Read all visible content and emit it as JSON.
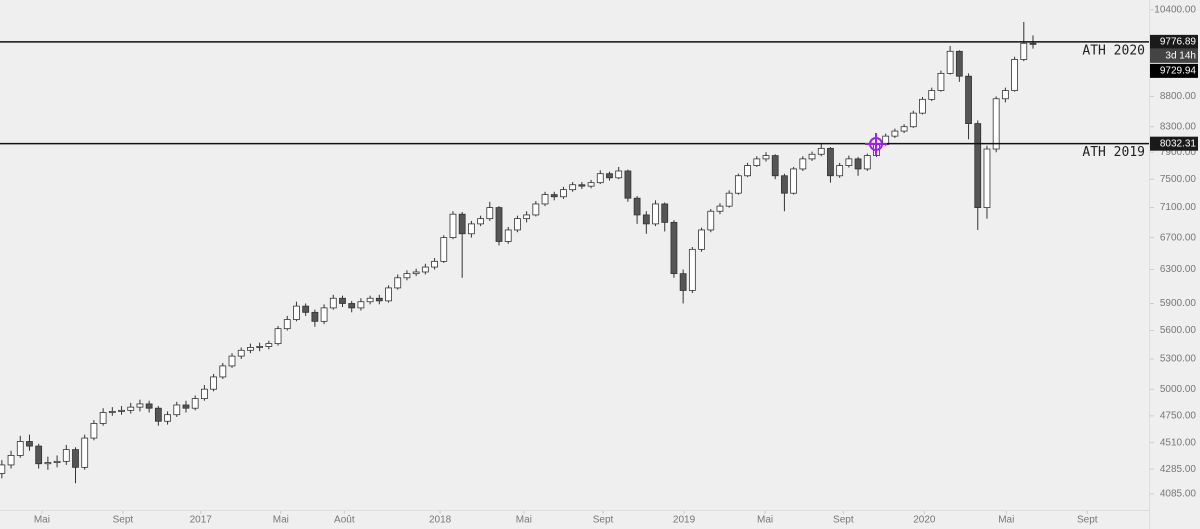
{
  "chart_data": {
    "type": "candlestick",
    "log_scale": true,
    "up_color": "#ffffff",
    "down_color": "#555555",
    "outline_color": "#333333",
    "ylim": [
      3960,
      10600
    ],
    "yticks": [
      {
        "value": 4085,
        "label": "4085.00"
      },
      {
        "value": 4285,
        "label": "4285.00"
      },
      {
        "value": 4510,
        "label": "4510.00"
      },
      {
        "value": 4750,
        "label": "4750.00"
      },
      {
        "value": 5000,
        "label": "5000.00"
      },
      {
        "value": 5300,
        "label": "5300.00"
      },
      {
        "value": 5600,
        "label": "5600.00"
      },
      {
        "value": 5900,
        "label": "5900.00"
      },
      {
        "value": 6300,
        "label": "6300.00"
      },
      {
        "value": 6700,
        "label": "6700.00"
      },
      {
        "value": 7100,
        "label": "7100.00"
      },
      {
        "value": 7500,
        "label": "7500.00"
      },
      {
        "value": 7900,
        "label": "7900.00"
      },
      {
        "value": 8300,
        "label": "8300.00"
      },
      {
        "value": 8800,
        "label": "8800.00"
      },
      {
        "value": 10400,
        "label": "10400.00"
      }
    ],
    "xlim": [
      -0.2,
      124.6
    ],
    "xticks": [
      {
        "value": 4.35,
        "label": "Mai"
      },
      {
        "value": 13.15,
        "label": "Sept"
      },
      {
        "value": 21.6,
        "label": "2017"
      },
      {
        "value": 30.3,
        "label": "Mai"
      },
      {
        "value": 37.2,
        "label": "Août"
      },
      {
        "value": 47.6,
        "label": "2018"
      },
      {
        "value": 56.7,
        "label": "Mai"
      },
      {
        "value": 65.3,
        "label": "Sept"
      },
      {
        "value": 74.1,
        "label": "2019"
      },
      {
        "value": 82.9,
        "label": "Mai"
      },
      {
        "value": 91.4,
        "label": "Sept"
      },
      {
        "value": 100.2,
        "label": "2020"
      },
      {
        "value": 109.1,
        "label": "Mai"
      },
      {
        "value": 117.9,
        "label": "Sept"
      }
    ],
    "open": [
      4250,
      4320,
      4400,
      4520,
      4480,
      4330,
      4340,
      4350,
      4450,
      4300,
      4550,
      4680,
      4780,
      4790,
      4800,
      4830,
      4860,
      4820,
      4700,
      4760,
      4850,
      4820,
      4910,
      5000,
      5120,
      5230,
      5330,
      5390,
      5420,
      5430,
      5460,
      5620,
      5720,
      5870,
      5800,
      5700,
      5850,
      5960,
      5900,
      5850,
      5920,
      5960,
      5930,
      6080,
      6200,
      6250,
      6270,
      6330,
      6400,
      6700,
      7010,
      6750,
      6880,
      6950,
      7100,
      6650,
      6800,
      6950,
      7000,
      7150,
      7280,
      7250,
      7350,
      7420,
      7400,
      7450,
      7580,
      7520,
      7620,
      7230,
      7000,
      6880,
      7150,
      6900,
      6250,
      6050,
      6550,
      6800,
      7050,
      7120,
      7300,
      7550,
      7700,
      7800,
      7850,
      7550,
      7300,
      7650,
      7800,
      7870,
      7960,
      7550,
      7700,
      7800,
      7650,
      7850,
      8020,
      8150,
      8230,
      8300,
      8520,
      8750,
      8900,
      9200,
      9600,
      9150,
      8350,
      7100,
      7950,
      8760,
      8900,
      9450,
      9750
    ],
    "high": [
      4360,
      4440,
      4570,
      4580,
      4500,
      4390,
      4400,
      4490,
      4470,
      4580,
      4710,
      4820,
      4830,
      4840,
      4870,
      4900,
      4890,
      4840,
      4790,
      4880,
      4890,
      4940,
      5040,
      5150,
      5260,
      5360,
      5420,
      5460,
      5470,
      5490,
      5650,
      5760,
      5920,
      5900,
      5830,
      5890,
      6000,
      5990,
      5930,
      5960,
      5990,
      6000,
      6110,
      6240,
      6290,
      6310,
      6370,
      6440,
      6730,
      7050,
      7040,
      6920,
      6990,
      7180,
      7120,
      6840,
      6990,
      7050,
      7190,
      7320,
      7320,
      7390,
      7460,
      7460,
      7490,
      7630,
      7610,
      7680,
      7640,
      7260,
      7050,
      7200,
      7170,
      6930,
      6300,
      6580,
      6830,
      7080,
      7160,
      7340,
      7580,
      7740,
      7840,
      7900,
      7870,
      7580,
      7680,
      7840,
      7910,
      8030,
      7980,
      7740,
      7850,
      7830,
      7880,
      8060,
      8190,
      8270,
      8340,
      8560,
      8790,
      8950,
      9250,
      9700,
      9620,
      9200,
      8400,
      8000,
      8800,
      8950,
      9500,
      10160,
      9900
    ],
    "low": [
      4210,
      4290,
      4380,
      4440,
      4290,
      4280,
      4300,
      4320,
      4170,
      4280,
      4530,
      4660,
      4750,
      4760,
      4770,
      4790,
      4780,
      4660,
      4670,
      4740,
      4780,
      4800,
      4890,
      4980,
      5100,
      5210,
      5300,
      5360,
      5380,
      5400,
      5440,
      5600,
      5700,
      5760,
      5640,
      5670,
      5830,
      5860,
      5800,
      5820,
      5890,
      5890,
      5910,
      6060,
      6170,
      6220,
      6240,
      6300,
      6380,
      6680,
      6200,
      6700,
      6850,
      6920,
      6600,
      6620,
      6770,
      6900,
      6980,
      7120,
      7200,
      7220,
      7320,
      7360,
      7370,
      7430,
      7480,
      7500,
      7180,
      6880,
      6750,
      6850,
      6780,
      6200,
      5900,
      6020,
      6520,
      6770,
      7010,
      7100,
      7280,
      7530,
      7680,
      7760,
      7500,
      7050,
      7280,
      7620,
      7770,
      7840,
      7450,
      7520,
      7670,
      7550,
      7620,
      7830,
      8000,
      8120,
      8200,
      8280,
      8500,
      8720,
      8880,
      9180,
      9050,
      8100,
      6800,
      6950,
      7900,
      8700,
      8880,
      9420,
      9650
    ],
    "close": [
      4320,
      4400,
      4520,
      4480,
      4330,
      4340,
      4350,
      4450,
      4300,
      4550,
      4680,
      4780,
      4790,
      4800,
      4830,
      4860,
      4820,
      4700,
      4760,
      4850,
      4820,
      4910,
      5000,
      5120,
      5230,
      5330,
      5390,
      5420,
      5430,
      5460,
      5620,
      5720,
      5870,
      5800,
      5700,
      5850,
      5960,
      5900,
      5850,
      5920,
      5960,
      5930,
      6080,
      6200,
      6250,
      6270,
      6330,
      6400,
      6700,
      7010,
      6750,
      6880,
      6950,
      7100,
      6650,
      6800,
      6950,
      7000,
      7150,
      7280,
      7250,
      7350,
      7420,
      7400,
      7450,
      7580,
      7520,
      7620,
      7230,
      7000,
      6880,
      7150,
      6900,
      6250,
      6050,
      6550,
      6800,
      7050,
      7120,
      7300,
      7550,
      7700,
      7800,
      7850,
      7550,
      7300,
      7650,
      7800,
      7870,
      7960,
      7550,
      7700,
      7800,
      7650,
      7850,
      8020,
      8150,
      8230,
      8300,
      8520,
      8750,
      8900,
      9200,
      9600,
      9150,
      8350,
      7100,
      7950,
      8760,
      8900,
      9450,
      9750,
      9729.94
    ],
    "countdown": "3d 14h",
    "hlines": [
      {
        "value": 9776.89,
        "label": "ATH 2020"
      },
      {
        "value": 8032.31,
        "label": "ATH 2019"
      }
    ]
  }
}
